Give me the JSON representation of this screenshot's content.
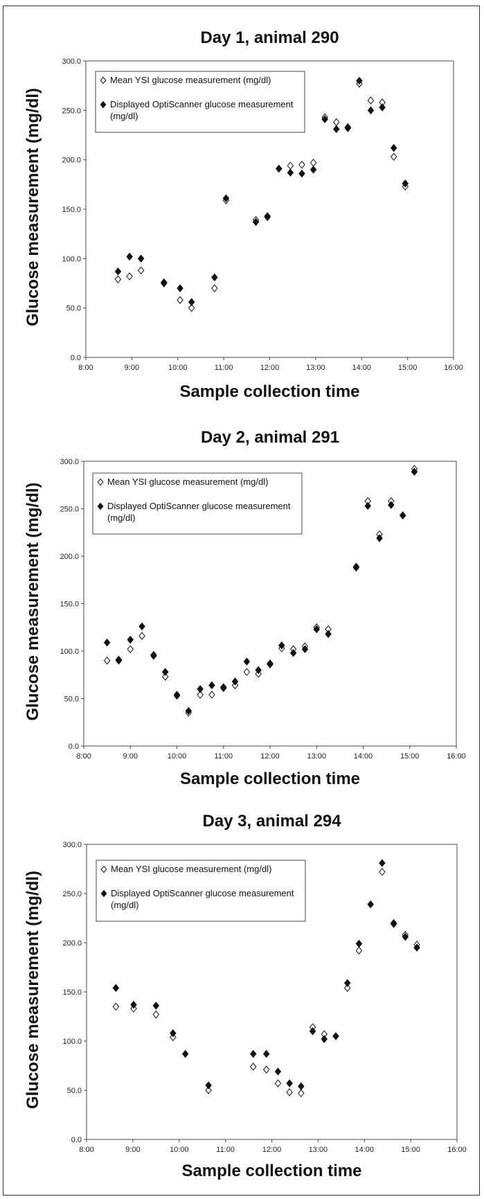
{
  "chart_data": [
    {
      "type": "scatter",
      "title": "Day 1, animal 290",
      "xlabel": "Sample collection time",
      "ylabel": "Glucose measurement (mg/dl)",
      "x_ticks": [
        "8:00",
        "9:00",
        "10:00",
        "11:00",
        "12:00",
        "13:00",
        "14:00",
        "15:00",
        "16:00"
      ],
      "y_ticks": [
        "0.0",
        "50.0",
        "100.0",
        "150.0",
        "200.0",
        "250.0",
        "300.0"
      ],
      "xlim": [
        "8:00",
        "16:00"
      ],
      "ylim": [
        0,
        300
      ],
      "legend_position": "top-left",
      "series": [
        {
          "name": "Mean YSI glucose measurement (mg/dl)",
          "marker": "open-diamond",
          "points": [
            [
              "8:42",
              79
            ],
            [
              "8:57",
              82
            ],
            [
              "9:12",
              88
            ],
            [
              "9:42",
              75
            ],
            [
              "10:03",
              58
            ],
            [
              "10:18",
              50
            ],
            [
              "10:48",
              70
            ],
            [
              "11:03",
              159
            ],
            [
              "11:42",
              139
            ],
            [
              "11:57",
              143
            ],
            [
              "12:12",
              191
            ],
            [
              "12:27",
              194
            ],
            [
              "12:42",
              195
            ],
            [
              "12:57",
              197
            ],
            [
              "13:12",
              243
            ],
            [
              "13:27",
              238
            ],
            [
              "13:42",
              233
            ],
            [
              "13:57",
              277
            ],
            [
              "14:12",
              260
            ],
            [
              "14:27",
              258
            ],
            [
              "14:42",
              203
            ],
            [
              "14:57",
              173
            ]
          ]
        },
        {
          "name": "Displayed OptiScanner glucose measurement (mg/dl)",
          "marker": "filled-diamond",
          "points": [
            [
              "8:42",
              87
            ],
            [
              "8:57",
              102
            ],
            [
              "9:12",
              100
            ],
            [
              "9:42",
              76
            ],
            [
              "10:03",
              70
            ],
            [
              "10:18",
              56
            ],
            [
              "10:48",
              81
            ],
            [
              "11:03",
              161
            ],
            [
              "11:42",
              137
            ],
            [
              "11:57",
              142
            ],
            [
              "12:12",
              191
            ],
            [
              "12:27",
              187
            ],
            [
              "12:42",
              186
            ],
            [
              "12:57",
              190
            ],
            [
              "13:12",
              241
            ],
            [
              "13:27",
              231
            ],
            [
              "13:42",
              232
            ],
            [
              "13:57",
              280
            ],
            [
              "14:12",
              250
            ],
            [
              "14:27",
              253
            ],
            [
              "14:42",
              212
            ],
            [
              "14:57",
              176
            ]
          ]
        }
      ]
    },
    {
      "type": "scatter",
      "title": "Day 2, animal 291",
      "xlabel": "Sample collection time",
      "ylabel": "Glucose measurement (mg/dl)",
      "x_ticks": [
        "8:00",
        "9:00",
        "10:00",
        "11:00",
        "12:00",
        "13:00",
        "14:00",
        "15:00",
        "16:00"
      ],
      "y_ticks": [
        "0.0",
        "50.0",
        "100.0",
        "150.0",
        "200.0",
        "250.0",
        "300.0"
      ],
      "xlim": [
        "8:00",
        "16:00"
      ],
      "ylim": [
        0,
        300
      ],
      "legend_position": "top-left",
      "series": [
        {
          "name": "Mean YSI glucose measurement (mg/dl)",
          "marker": "open-diamond",
          "points": [
            [
              "8:30",
              90
            ],
            [
              "8:45",
              91
            ],
            [
              "9:00",
              102
            ],
            [
              "9:15",
              116
            ],
            [
              "9:30",
              96
            ],
            [
              "9:45",
              73
            ],
            [
              "10:00",
              54
            ],
            [
              "10:15",
              35
            ],
            [
              "10:30",
              54
            ],
            [
              "10:45",
              54
            ],
            [
              "11:00",
              62
            ],
            [
              "11:15",
              64
            ],
            [
              "11:30",
              78
            ],
            [
              "11:45",
              76
            ],
            [
              "12:00",
              87
            ],
            [
              "12:15",
              103
            ],
            [
              "12:30",
              102
            ],
            [
              "12:45",
              105
            ],
            [
              "13:00",
              125
            ],
            [
              "13:15",
              123
            ],
            [
              "13:51",
              189
            ],
            [
              "14:06",
              258
            ],
            [
              "14:21",
              223
            ],
            [
              "14:36",
              258
            ],
            [
              "14:51",
              243
            ],
            [
              "15:06",
              292
            ]
          ]
        },
        {
          "name": "Displayed OptiScanner glucose measurement (mg/dl)",
          "marker": "filled-diamond",
          "points": [
            [
              "8:30",
              109
            ],
            [
              "8:45",
              90
            ],
            [
              "9:00",
              112
            ],
            [
              "9:15",
              126
            ],
            [
              "9:30",
              95
            ],
            [
              "9:45",
              78
            ],
            [
              "10:00",
              53
            ],
            [
              "10:15",
              37
            ],
            [
              "10:30",
              60
            ],
            [
              "10:45",
              64
            ],
            [
              "11:00",
              61
            ],
            [
              "11:15",
              68
            ],
            [
              "11:30",
              89
            ],
            [
              "11:45",
              80
            ],
            [
              "12:00",
              86
            ],
            [
              "12:15",
              106
            ],
            [
              "12:30",
              98
            ],
            [
              "12:45",
              102
            ],
            [
              "13:00",
              123
            ],
            [
              "13:15",
              118
            ],
            [
              "13:51",
              188
            ],
            [
              "14:06",
              253
            ],
            [
              "14:21",
              219
            ],
            [
              "14:36",
              254
            ],
            [
              "14:51",
              243
            ],
            [
              "15:06",
              289
            ]
          ]
        }
      ]
    },
    {
      "type": "scatter",
      "title": "Day 3, animal 294",
      "xlabel": "Sample collection time",
      "ylabel": "Glucose measurement (mg/dl)",
      "x_ticks": [
        "8:00",
        "9:00",
        "10:00",
        "11:00",
        "12:00",
        "13:00",
        "14:00",
        "15:00",
        "16:00"
      ],
      "y_ticks": [
        "0.0",
        "50.0",
        "100.0",
        "150.0",
        "200.0",
        "250.0",
        "300.0"
      ],
      "xlim": [
        "8:00",
        "16:00"
      ],
      "ylim": [
        0,
        300
      ],
      "legend_position": "top-left",
      "series": [
        {
          "name": "Mean YSI glucose measurement (mg/dl)",
          "marker": "open-diamond",
          "points": [
            [
              "8:38",
              135
            ],
            [
              "9:01",
              133
            ],
            [
              "9:30",
              127
            ],
            [
              "9:52",
              104
            ],
            [
              "10:38",
              50
            ],
            [
              "11:36",
              74
            ],
            [
              "11:53",
              71
            ],
            [
              "12:08",
              57
            ],
            [
              "12:23",
              48
            ],
            [
              "12:38",
              47
            ],
            [
              "12:53",
              114
            ],
            [
              "13:08",
              107
            ],
            [
              "13:38",
              154
            ],
            [
              "13:53",
              192
            ],
            [
              "14:23",
              272
            ],
            [
              "14:38",
              220
            ],
            [
              "14:53",
              208
            ],
            [
              "15:08",
              198
            ]
          ]
        },
        {
          "name": "Displayed OptiScanner glucose measurement (mg/dl)",
          "marker": "filled-diamond",
          "points": [
            [
              "8:38",
              154
            ],
            [
              "9:01",
              137
            ],
            [
              "9:30",
              136
            ],
            [
              "9:52",
              108
            ],
            [
              "10:08",
              87
            ],
            [
              "10:38",
              55
            ],
            [
              "11:36",
              87
            ],
            [
              "11:53",
              87
            ],
            [
              "12:08",
              69
            ],
            [
              "12:23",
              57
            ],
            [
              "12:38",
              54
            ],
            [
              "12:53",
              110
            ],
            [
              "13:08",
              102
            ],
            [
              "13:23",
              105
            ],
            [
              "13:38",
              159
            ],
            [
              "13:53",
              199
            ],
            [
              "14:08",
              239
            ],
            [
              "14:23",
              281
            ],
            [
              "14:38",
              219
            ],
            [
              "14:53",
              206
            ],
            [
              "15:08",
              195
            ]
          ]
        }
      ]
    }
  ]
}
